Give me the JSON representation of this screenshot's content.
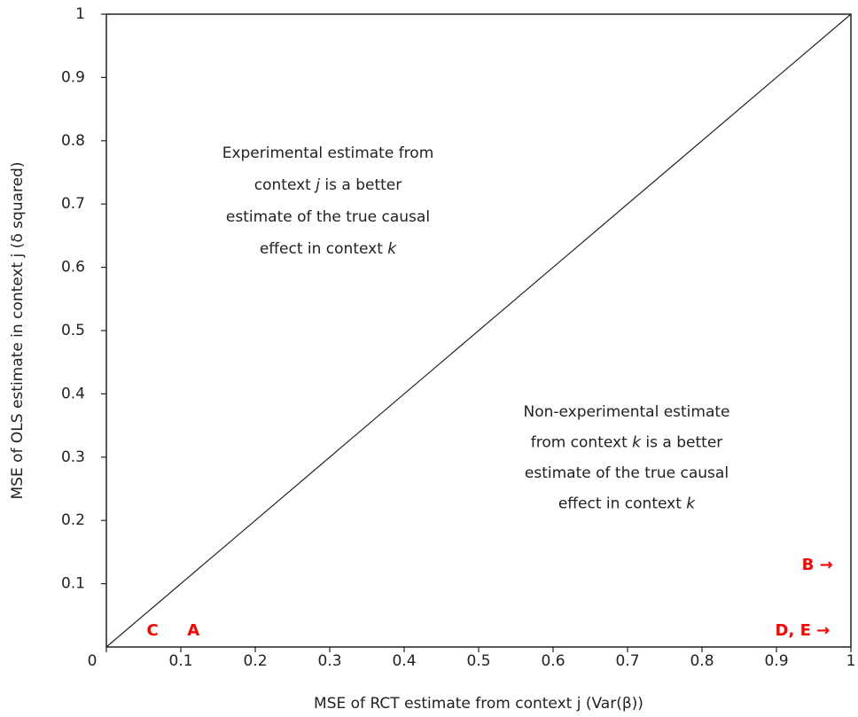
{
  "chart_data": {
    "type": "scatter",
    "x_label": "MSE of RCT estimate from context j (Var(β))",
    "y_label": "MSE of OLS estimate in context j (δ squared)",
    "xlim": [
      0,
      1
    ],
    "ylim": [
      0,
      1
    ],
    "xticks": [
      0,
      0.1,
      0.2,
      0.3,
      0.4,
      0.5,
      0.6,
      0.7,
      0.8,
      0.9,
      1
    ],
    "yticks": [
      0.1,
      0.2,
      0.3,
      0.4,
      0.5,
      0.6,
      0.7,
      0.8,
      0.9,
      1
    ],
    "color": "#ff0000",
    "points": [
      {
        "label": "C",
        "x": 0.062,
        "y": 0.025
      },
      {
        "label": "A",
        "x": 0.117,
        "y": 0.025
      },
      {
        "label": "B →",
        "x": 0.955,
        "y": 0.129
      },
      {
        "label": "D, E →",
        "x": 0.935,
        "y": 0.025
      }
    ],
    "annotations": [
      {
        "lines": [
          [
            "Experimental estimate from"
          ],
          [
            "context ",
            "j",
            " is a better"
          ],
          [
            "estimate of the true causal"
          ],
          [
            "effect in context ",
            "k"
          ]
        ]
      },
      {
        "lines": [
          [
            "Non-experimental estimate"
          ],
          [
            "from context ",
            "k",
            " is a better"
          ],
          [
            "estimate of the true causal"
          ],
          [
            "effect in context ",
            "k"
          ]
        ]
      }
    ]
  }
}
